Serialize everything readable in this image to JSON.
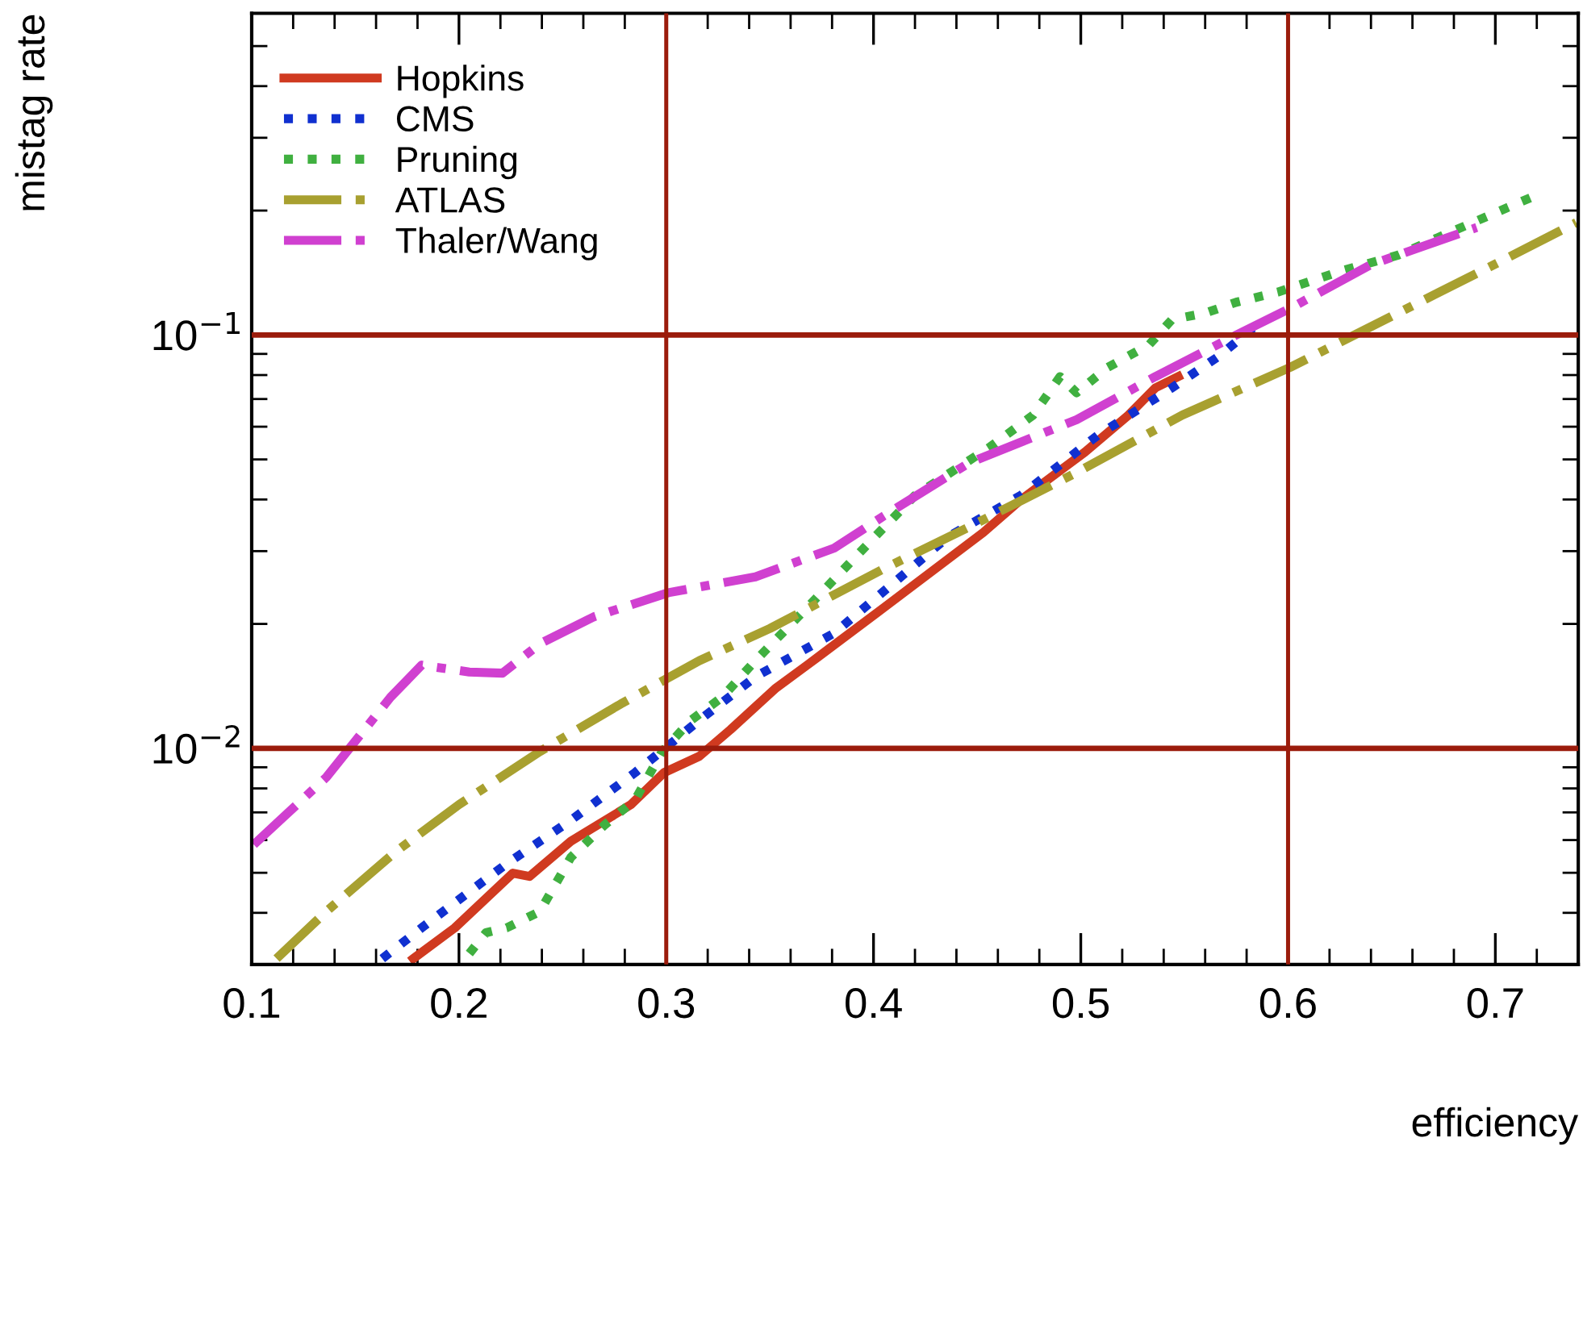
{
  "chart_data": {
    "type": "line",
    "xlabel": "efficiency",
    "ylabel": "mistag rate",
    "log": "y",
    "grid": false,
    "legend": "top left",
    "xlim": [
      0.1,
      0.74
    ],
    "ylim": [
      0.003,
      0.6
    ],
    "xticks": [
      0.1,
      0.2,
      0.3,
      0.4,
      0.5,
      0.6,
      0.7
    ],
    "yticks": [
      {
        "value": 0.01,
        "label": "10$^{−2}$"
      },
      {
        "value": 0.1,
        "label": "10$^{−1}$"
      }
    ],
    "series": [
      {
        "name": "Hopkins",
        "color": "#d03a20",
        "line_style": "solid",
        "x": [
          0.178,
          0.198,
          0.226,
          0.234,
          0.254,
          0.283,
          0.299,
          0.316,
          0.331,
          0.353,
          0.368,
          0.405,
          0.453,
          0.471,
          0.502,
          0.523,
          0.536,
          0.547
        ],
        "values": [
          0.0031,
          0.00368,
          0.00499,
          0.0049,
          0.00596,
          0.00731,
          0.00874,
          0.00957,
          0.0111,
          0.014,
          0.0159,
          0.0219,
          0.0333,
          0.0399,
          0.0521,
          0.064,
          0.0745,
          0.0793
        ]
      },
      {
        "name": "CMS",
        "color": "#1030d0",
        "line_style": "dotted",
        "x": [
          0.163,
          0.182,
          0.223,
          0.254,
          0.285,
          0.316,
          0.343,
          0.381,
          0.405,
          0.436,
          0.471,
          0.508,
          0.544,
          0.567,
          0.583
        ],
        "values": [
          0.0031,
          0.00368,
          0.00526,
          0.0067,
          0.00874,
          0.0117,
          0.0149,
          0.019,
          0.024,
          0.0325,
          0.0409,
          0.0571,
          0.0745,
          0.0891,
          0.104
        ]
      },
      {
        "name": "Pruning",
        "color": "#40b040",
        "line_style": "dotted",
        "x": [
          0.205,
          0.213,
          0.223,
          0.239,
          0.254,
          0.27,
          0.285,
          0.298,
          0.312,
          0.327,
          0.343,
          0.368,
          0.394,
          0.42,
          0.456,
          0.477,
          0.49,
          0.498,
          0.513,
          0.533,
          0.544,
          0.56,
          0.575,
          0.595,
          0.626,
          0.653,
          0.678,
          0.719
        ],
        "values": [
          0.00319,
          0.00358,
          0.00368,
          0.00403,
          0.00545,
          0.00651,
          0.00751,
          0.00982,
          0.0117,
          0.0133,
          0.0163,
          0.0219,
          0.03,
          0.0409,
          0.0535,
          0.064,
          0.0793,
          0.0725,
          0.0835,
          0.0948,
          0.109,
          0.113,
          0.12,
          0.127,
          0.143,
          0.156,
          0.177,
          0.217
        ]
      },
      {
        "name": "ATLAS",
        "color": "#a8a030",
        "line_style": "dashdot",
        "x": [
          0.112,
          0.136,
          0.169,
          0.2,
          0.239,
          0.278,
          0.316,
          0.35,
          0.405,
          0.446,
          0.498,
          0.549,
          0.601,
          0.653,
          0.704,
          0.739
        ],
        "values": [
          0.0031,
          0.00403,
          0.0056,
          0.00731,
          0.00982,
          0.0128,
          0.0163,
          0.0195,
          0.0272,
          0.0343,
          0.0465,
          0.064,
          0.0835,
          0.113,
          0.152,
          0.187
        ]
      },
      {
        "name": "Thaler/Wang",
        "color": "#d040d0",
        "line_style": "dashdot",
        "x": [
          0.101,
          0.136,
          0.167,
          0.182,
          0.205,
          0.221,
          0.239,
          0.265,
          0.301,
          0.343,
          0.381,
          0.405,
          0.446,
          0.498,
          0.536,
          0.575,
          0.601,
          0.64,
          0.691
        ],
        "values": [
          0.00585,
          0.00851,
          0.0133,
          0.0159,
          0.0153,
          0.0152,
          0.0179,
          0.0208,
          0.0238,
          0.026,
          0.0305,
          0.0365,
          0.049,
          0.0624,
          0.0793,
          0.1,
          0.116,
          0.148,
          0.182
        ]
      }
    ],
    "ref_lines": [
      {
        "axis": "y",
        "value": 0.1,
        "color": "#9b1c0c"
      },
      {
        "axis": "y",
        "value": 0.01,
        "color": "#9b1c0c"
      },
      {
        "axis": "x",
        "value": 0.3,
        "color": "#9b1c0c"
      },
      {
        "axis": "x",
        "value": 0.6,
        "color": "#9b1c0c"
      }
    ]
  }
}
